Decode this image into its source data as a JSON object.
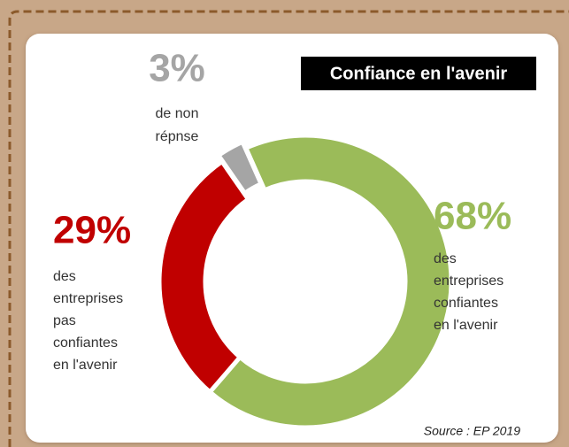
{
  "chart_data": {
    "type": "donut",
    "title": "Confiance en l'avenir",
    "values": [
      68,
      29,
      3
    ],
    "value_labels": [
      "68%",
      "29%",
      "3%"
    ],
    "labels": [
      [
        "des",
        "entreprises",
        "confiantes",
        "en l'avenir"
      ],
      [
        "des",
        "entreprises",
        "pas",
        "confiantes",
        "en l'avenir"
      ],
      [
        "de non",
        "répnse"
      ]
    ],
    "colors": [
      "#9bbb59",
      "#c00000",
      "#a5a5a5"
    ],
    "source": "Source : EP 2019"
  }
}
